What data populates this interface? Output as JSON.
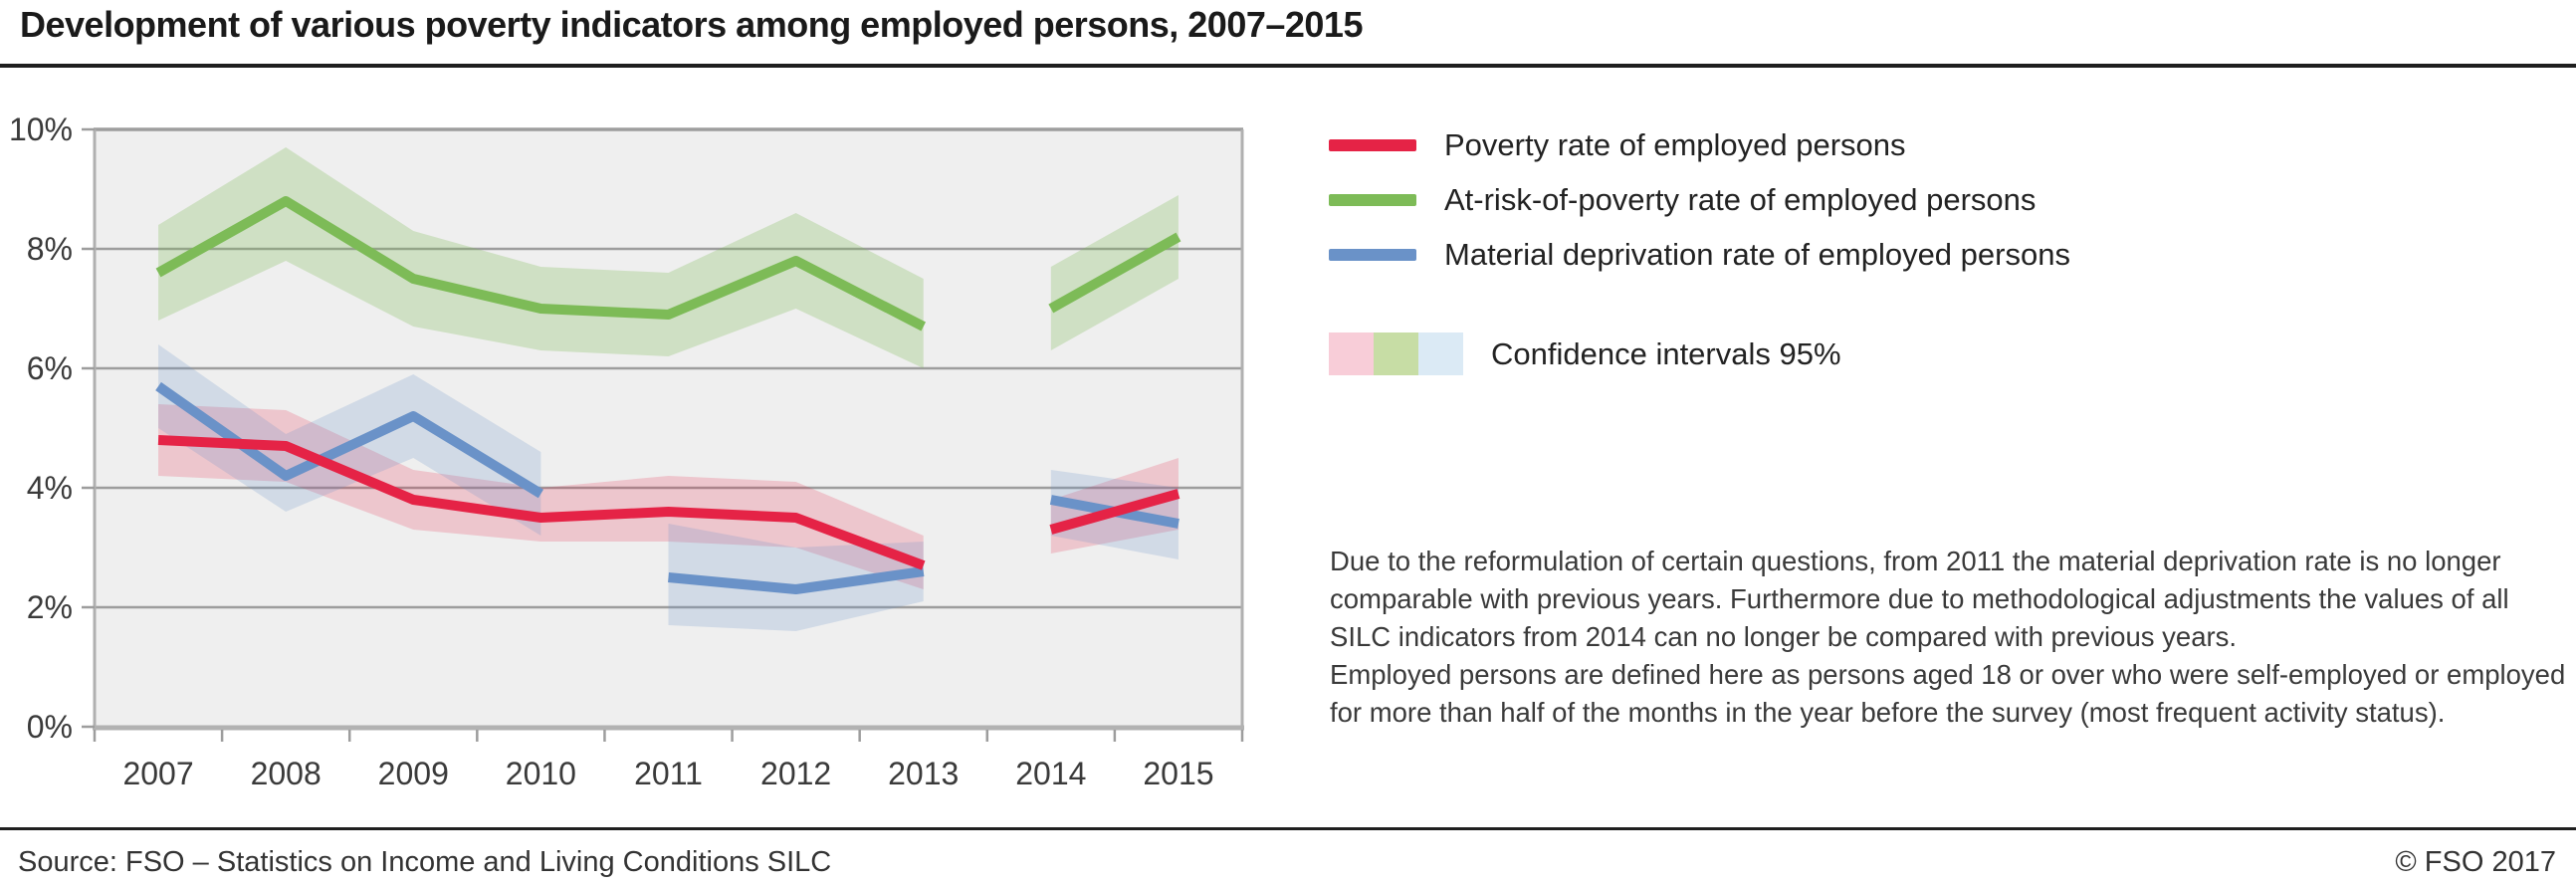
{
  "title": "Development of various poverty indicators among employed persons, 2007–2015",
  "legend": {
    "series": [
      {
        "label": "Poverty rate of employed persons",
        "color": "#e52346"
      },
      {
        "label": "At-risk-of-poverty rate of employed persons",
        "color": "#7dbb57"
      },
      {
        "label": "Material deprivation rate of employed persons",
        "color": "#6a92c8"
      }
    ],
    "confidence": {
      "label": "Confidence intervals 95%",
      "swatches": [
        "#f8cdd8",
        "#c7dda5",
        "#dbeaf5"
      ]
    }
  },
  "note": {
    "lines": [
      "Due to the reformulation of certain questions, from 2011 the material deprivation rate is no longer",
      "comparable with previous years. Furthermore due to methodological adjustments the values of all",
      "SILC indicators from 2014 can no longer be compared with previous years.",
      "Employed persons are defined here as persons aged 18 or over who were self-employed or employed",
      "for more than half of the months in the year before the survey (most frequent activity status)."
    ]
  },
  "footer": {
    "source": "Source: FSO – Statistics on Income and Living Conditions SILC",
    "copyright": "© FSO 2017"
  },
  "chart_data": {
    "type": "line",
    "title": "Development of various poverty indicators among employed persons, 2007–2015",
    "x_labels": [
      "2007",
      "2008",
      "2009",
      "2010",
      "2011",
      "2012",
      "2013",
      "2014",
      "2015"
    ],
    "y_tick_labels": [
      "0%",
      "2%",
      "4%",
      "6%",
      "8%",
      "10%"
    ],
    "y_ticks": [
      0,
      2,
      4,
      6,
      8,
      10
    ],
    "ylim": [
      0,
      10
    ],
    "grid": "horizontal",
    "legend_position": "right",
    "plot_bg": "#efefef",
    "grid_color": "#9d9d9d",
    "axis_color": "#b2b2b2",
    "label_color": "#3a3a3a",
    "series": [
      {
        "name": "Poverty rate of employed persons",
        "slug": "poverty-rate",
        "color": "#e52346",
        "band_color": "rgba(229,35,70,0.20)",
        "segments": [
          {
            "x": [
              2007,
              2008,
              2009,
              2010,
              2011,
              2012,
              2013
            ],
            "values": [
              4.8,
              4.7,
              3.8,
              3.5,
              3.6,
              3.5,
              2.7
            ],
            "ci_low": [
              4.2,
              4.1,
              3.3,
              3.1,
              3.1,
              3.0,
              2.3
            ],
            "ci_high": [
              5.4,
              5.3,
              4.3,
              4.0,
              4.2,
              4.1,
              3.2
            ]
          },
          {
            "x": [
              2014,
              2015
            ],
            "values": [
              3.3,
              3.9
            ],
            "ci_low": [
              2.9,
              3.3
            ],
            "ci_high": [
              3.8,
              4.5
            ]
          }
        ]
      },
      {
        "name": "At-risk-of-poverty rate of employed persons",
        "slug": "at-risk-of-poverty-rate",
        "color": "#7dbb57",
        "band_color": "rgba(125,187,87,0.28)",
        "segments": [
          {
            "x": [
              2007,
              2008,
              2009,
              2010,
              2011,
              2012,
              2013
            ],
            "values": [
              7.6,
              8.8,
              7.5,
              7.0,
              6.9,
              7.8,
              6.7
            ],
            "ci_low": [
              6.8,
              7.8,
              6.7,
              6.3,
              6.2,
              7.0,
              6.0
            ],
            "ci_high": [
              8.4,
              9.7,
              8.3,
              7.7,
              7.6,
              8.6,
              7.5
            ]
          },
          {
            "x": [
              2014,
              2015
            ],
            "values": [
              7.0,
              8.2
            ],
            "ci_low": [
              6.3,
              7.5
            ],
            "ci_high": [
              7.7,
              8.9
            ]
          }
        ]
      },
      {
        "name": "Material deprivation rate of employed persons",
        "slug": "material-deprivation-rate",
        "color": "#6a92c8",
        "band_color": "rgba(106,146,200,0.22)",
        "segments": [
          {
            "x": [
              2007,
              2008,
              2009,
              2010
            ],
            "values": [
              5.7,
              4.2,
              5.2,
              3.9
            ],
            "ci_low": [
              5.0,
              3.6,
              4.5,
              3.2
            ],
            "ci_high": [
              6.4,
              4.9,
              5.9,
              4.6
            ]
          },
          {
            "x": [
              2011,
              2012,
              2013
            ],
            "values": [
              2.5,
              2.3,
              2.6
            ],
            "ci_low": [
              1.7,
              1.6,
              2.1
            ],
            "ci_high": [
              3.4,
              3.0,
              3.1
            ]
          },
          {
            "x": [
              2014,
              2015
            ],
            "values": [
              3.8,
              3.4
            ],
            "ci_low": [
              3.2,
              2.8
            ],
            "ci_high": [
              4.3,
              4.0
            ]
          }
        ]
      }
    ]
  }
}
